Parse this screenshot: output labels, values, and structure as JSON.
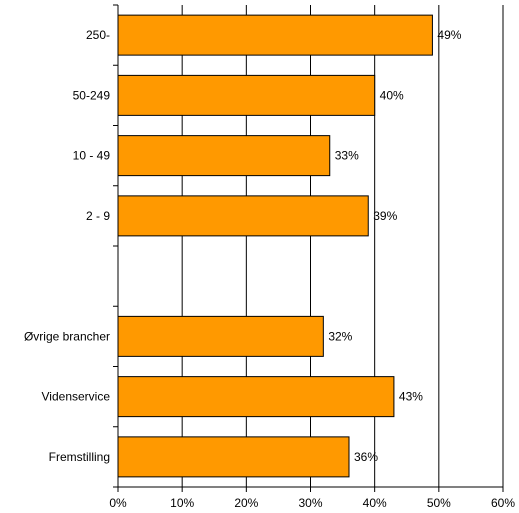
{
  "chart_data": {
    "type": "bar",
    "orientation": "horizontal",
    "categories": [
      "250-",
      "50-249",
      "10 - 49",
      "2 - 9",
      "",
      "Øvrige brancher",
      "Videnservice",
      "Fremstilling"
    ],
    "values": [
      49,
      40,
      33,
      39,
      null,
      32,
      43,
      36
    ],
    "data_labels": [
      "49%",
      "40%",
      "33%",
      "39%",
      "",
      "32%",
      "43%",
      "36%"
    ],
    "xlim": [
      0,
      60
    ],
    "x_ticks": [
      0,
      10,
      20,
      30,
      40,
      50,
      60
    ],
    "x_tick_labels": [
      "0%",
      "10%",
      "20%",
      "30%",
      "40%",
      "50%",
      "60%"
    ],
    "title": "",
    "xlabel": "",
    "ylabel": "",
    "grid": "vertical",
    "legend": "none",
    "colors": {
      "bar": "#FF9900",
      "bar_edge": "#000000",
      "grid": "#000000"
    }
  }
}
